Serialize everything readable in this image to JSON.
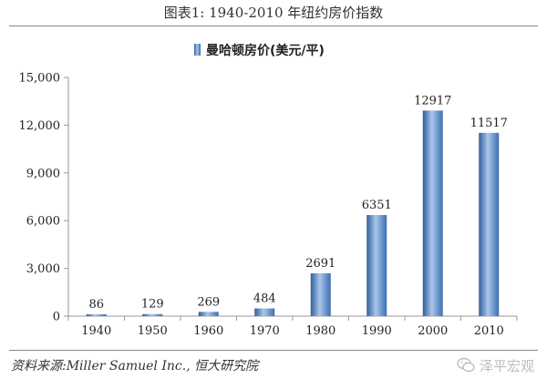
{
  "figure_title": "图表1:  1940-2010 年纽约房价指数",
  "source_note": "资料来源:Miller Samuel Inc., 恒大研究院",
  "watermark": {
    "text": "泽平宏观",
    "icon": "wechat-icon"
  },
  "colors": {
    "bar": "#3c6fb2",
    "bar_highlight": "#a9c6ea",
    "axis": "#9a9a9a"
  },
  "chart_data": {
    "type": "bar",
    "title": "",
    "xlabel": "",
    "ylabel": "",
    "legend_position": "top-center",
    "grid": false,
    "categories": [
      "1940",
      "1950",
      "1960",
      "1970",
      "1980",
      "1990",
      "2000",
      "2010"
    ],
    "series": [
      {
        "name": "曼哈顿房价(美元/平)",
        "values": [
          86,
          129,
          269,
          484,
          2691,
          6351,
          12917,
          11517
        ],
        "labels": [
          "86",
          "129",
          "269",
          "484",
          "2691",
          "6351",
          "12917",
          "11517"
        ]
      }
    ],
    "ylim": [
      0,
      15000
    ],
    "yticks": [
      0,
      3000,
      6000,
      9000,
      12000,
      15000
    ],
    "ytick_labels": [
      "0",
      "3,000",
      "6,000",
      "9,000",
      "12,000",
      "15,000"
    ]
  }
}
